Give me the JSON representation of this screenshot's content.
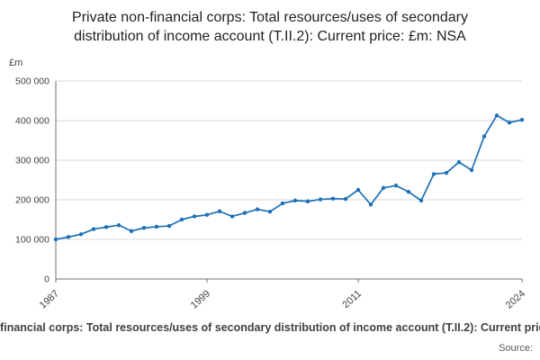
{
  "title": "Private non-financial corps: Total resources/uses of secondary distribution of income account (T.II.2): Current price: £m: NSA",
  "y_unit": "£m",
  "legend_text": "Private non-financial corps: Total resources/uses of secondary distribution of income account (T.II.2): Current price: £m: NSA",
  "source_label": "Source:",
  "colors": {
    "line": "#1d70b8",
    "grid": "#d9d9d9",
    "axis": "#707070",
    "tick_text": "#414042"
  },
  "chart_data": {
    "type": "line",
    "title": "Private non-financial corps: Total resources/uses of secondary distribution of income account (T.II.2): Current price: £m: NSA",
    "xlabel": "",
    "ylabel": "£m",
    "ylim": [
      0,
      500000
    ],
    "grid": true,
    "markers": true,
    "legend_position": "bottom",
    "x": [
      1987,
      1988,
      1989,
      1990,
      1991,
      1992,
      1993,
      1994,
      1995,
      1996,
      1997,
      1998,
      1999,
      2000,
      2001,
      2002,
      2003,
      2004,
      2005,
      2006,
      2007,
      2008,
      2009,
      2010,
      2011,
      2012,
      2013,
      2014,
      2015,
      2016,
      2017,
      2018,
      2019,
      2020,
      2021,
      2022,
      2023,
      2024
    ],
    "series": [
      {
        "name": "Private non-financial corps: Total resources/uses of secondary distribution of income account (T.II.2): Current price: £m: NSA",
        "values": [
          100000,
          106000,
          113000,
          126000,
          131000,
          136000,
          121000,
          129000,
          132000,
          134000,
          150000,
          158000,
          162000,
          171000,
          158000,
          167000,
          176000,
          170000,
          191000,
          198000,
          196000,
          201000,
          203000,
          202000,
          225000,
          188000,
          230000,
          236000,
          220000,
          198000,
          265000,
          268000,
          295000,
          275000,
          360000,
          413000,
          395000,
          402000
        ]
      }
    ],
    "y_ticks": [
      0,
      100000,
      200000,
      300000,
      400000,
      500000
    ],
    "y_tick_labels": [
      "0",
      "100 000",
      "200 000",
      "300 000",
      "400 000",
      "500 000"
    ],
    "x_tick_years": [
      1987,
      1999,
      2011,
      2024
    ],
    "x_tick_labels": [
      "1987",
      "1999",
      "2011",
      "2024"
    ]
  }
}
